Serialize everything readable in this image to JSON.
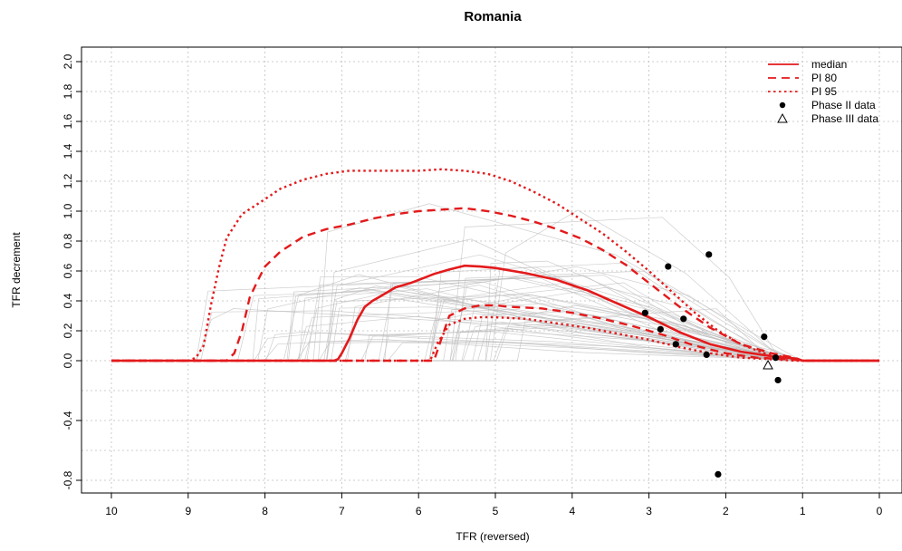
{
  "colors": {
    "median": "#e31a1c",
    "pi": "#e31a1c",
    "trajectories": "#bdbdbd",
    "grid": "#bfbfbf",
    "points": "#000000"
  },
  "chart_data": {
    "type": "line",
    "title": "Romania",
    "xlabel": "TFR (reversed)",
    "ylabel": "TFR decrement",
    "x_reversed": true,
    "xlim": [
      10,
      0
    ],
    "ylim": [
      -0.8,
      2.0
    ],
    "grid": true,
    "legend_position": "top-right",
    "x_ticks": [
      10,
      9,
      8,
      7,
      6,
      5,
      4,
      3,
      2,
      1,
      0
    ],
    "x_tick_labels": [
      "10",
      "9",
      "8",
      "7",
      "6",
      "5",
      "4",
      "3",
      "2",
      "1",
      "0"
    ],
    "y_ticks": [
      -0.8,
      -0.4,
      0.0,
      0.2,
      0.4,
      0.6,
      0.8,
      1.0,
      1.2,
      1.4,
      1.6,
      1.8,
      2.0
    ],
    "y_tick_labels": [
      "-0.8",
      "-0.4",
      "0.0",
      "0.2",
      "0.4",
      "0.6",
      "0.8",
      "1.0",
      "1.2",
      "1.4",
      "1.6",
      "1.8",
      "2.0"
    ],
    "y_grid": [
      -0.8,
      -0.6,
      -0.4,
      -0.2,
      0.0,
      0.2,
      0.4,
      0.6,
      0.8,
      1.0,
      1.2,
      1.4,
      1.6,
      1.8,
      2.0
    ],
    "legend": [
      {
        "label": "median",
        "style": "solid"
      },
      {
        "label": "PI 80",
        "style": "dashed"
      },
      {
        "label": "PI 95",
        "style": "dotted"
      },
      {
        "label": "Phase II data",
        "style": "dot"
      },
      {
        "label": "Phase III data",
        "style": "triangle"
      }
    ],
    "series": [
      {
        "name": "median",
        "style": "solid",
        "x": [
          10,
          7.1,
          7.05,
          7.0,
          6.9,
          6.8,
          6.7,
          6.6,
          6.5,
          6.3,
          6.1,
          6.0,
          5.8,
          5.6,
          5.4,
          5.2,
          5.0,
          4.6,
          4.2,
          3.8,
          3.4,
          3.0,
          2.6,
          2.2,
          1.8,
          1.4,
          1.1,
          1.0,
          0
        ],
        "y": [
          0,
          0,
          0.01,
          0.05,
          0.15,
          0.27,
          0.36,
          0.4,
          0.43,
          0.49,
          0.52,
          0.54,
          0.58,
          0.61,
          0.635,
          0.63,
          0.62,
          0.585,
          0.54,
          0.47,
          0.38,
          0.29,
          0.19,
          0.11,
          0.06,
          0.03,
          0.015,
          0,
          0
        ]
      },
      {
        "name": "PI 80 upper",
        "style": "dashed",
        "x": [
          10,
          8.5,
          8.4,
          8.3,
          8.2,
          8.1,
          8.0,
          7.8,
          7.5,
          7.2,
          6.9,
          6.6,
          6.3,
          6.0,
          5.7,
          5.4,
          5.1,
          4.8,
          4.5,
          4.2,
          3.9,
          3.6,
          3.3,
          3.0,
          2.6,
          2.2,
          1.8,
          1.4,
          1.1,
          1.0,
          0
        ],
        "y": [
          0,
          0,
          0.05,
          0.2,
          0.42,
          0.53,
          0.63,
          0.73,
          0.83,
          0.88,
          0.91,
          0.95,
          0.98,
          1.0,
          1.01,
          1.02,
          1.0,
          0.97,
          0.93,
          0.88,
          0.82,
          0.74,
          0.64,
          0.52,
          0.36,
          0.22,
          0.11,
          0.05,
          0.02,
          0,
          0
        ]
      },
      {
        "name": "PI 80 lower",
        "style": "dashed",
        "x": [
          10,
          5.8,
          5.7,
          5.6,
          5.4,
          5.2,
          5.0,
          4.8,
          4.4,
          4.0,
          3.6,
          3.2,
          2.8,
          2.4,
          2.0,
          1.6,
          1.2,
          1.0,
          0
        ],
        "y": [
          0,
          0,
          0.15,
          0.3,
          0.35,
          0.37,
          0.37,
          0.36,
          0.35,
          0.32,
          0.28,
          0.23,
          0.17,
          0.1,
          0.05,
          0.02,
          0.01,
          0,
          0
        ]
      },
      {
        "name": "PI 95 upper",
        "style": "dotted",
        "x": [
          10,
          9.0,
          8.9,
          8.8,
          8.7,
          8.6,
          8.5,
          8.3,
          8.0,
          7.8,
          7.5,
          7.2,
          6.9,
          6.6,
          6.3,
          6.0,
          5.7,
          5.4,
          5.1,
          4.8,
          4.5,
          4.2,
          3.9,
          3.6,
          3.3,
          3.0,
          2.7,
          2.4,
          2.1,
          1.8,
          1.5,
          1.2,
          1.0,
          0
        ],
        "y": [
          0,
          0,
          0.02,
          0.1,
          0.38,
          0.62,
          0.82,
          0.98,
          1.08,
          1.15,
          1.21,
          1.25,
          1.27,
          1.27,
          1.27,
          1.27,
          1.28,
          1.27,
          1.25,
          1.2,
          1.13,
          1.05,
          0.95,
          0.85,
          0.73,
          0.6,
          0.46,
          0.32,
          0.2,
          0.11,
          0.05,
          0.02,
          0,
          0
        ]
      },
      {
        "name": "PI 95 lower",
        "style": "dotted",
        "x": [
          10,
          5.85,
          5.75,
          5.6,
          5.4,
          5.2,
          5.0,
          4.6,
          4.2,
          3.8,
          3.4,
          3.0,
          2.6,
          2.2,
          1.8,
          1.4,
          1.1,
          1.0,
          0
        ],
        "y": [
          0,
          0,
          0.12,
          0.24,
          0.28,
          0.29,
          0.29,
          0.28,
          0.25,
          0.22,
          0.18,
          0.14,
          0.09,
          0.05,
          0.02,
          0.01,
          0,
          0,
          0
        ]
      }
    ],
    "phase2_points": {
      "x": [
        3.05,
        2.85,
        2.75,
        2.65,
        2.55,
        2.25,
        2.22,
        2.1,
        1.5,
        1.35,
        1.32
      ],
      "y": [
        0.32,
        0.21,
        0.63,
        0.11,
        0.28,
        0.04,
        0.71,
        -0.76,
        0.16,
        0.02,
        -0.13
      ]
    },
    "phase3_points": {
      "x": [
        1.45
      ],
      "y": [
        -0.03
      ]
    }
  }
}
